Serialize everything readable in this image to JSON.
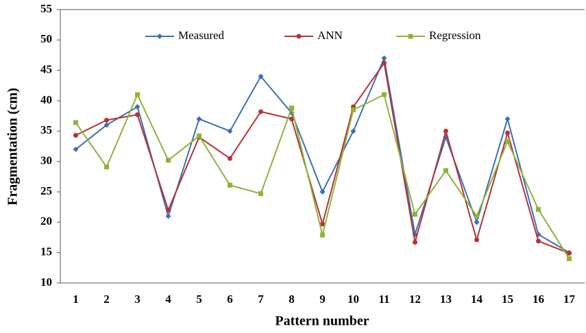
{
  "chart_data": {
    "type": "line",
    "x_label": "Pattern number",
    "y_label": "Fragmentation (cm)",
    "categories": [
      "1",
      "2",
      "3",
      "4",
      "5",
      "6",
      "7",
      "8",
      "9",
      "10",
      "11",
      "12",
      "13",
      "14",
      "15",
      "16",
      "17"
    ],
    "series": [
      {
        "name": "Measured",
        "color": "#3b6fb6",
        "marker": "diamond",
        "values": [
          32,
          36,
          39,
          21,
          37,
          35,
          44,
          38,
          25,
          35,
          47,
          18,
          34,
          20,
          37,
          18,
          15
        ]
      },
      {
        "name": "ANN",
        "color": "#b83232",
        "marker": "circle",
        "values": [
          34.3,
          36.8,
          37.7,
          22,
          34,
          30.5,
          38.2,
          37,
          19.7,
          39,
          46.2,
          16.7,
          35,
          17.1,
          34.7,
          16.9,
          14.9
        ]
      },
      {
        "name": "Regression",
        "color": "#8db33a",
        "marker": "square",
        "values": [
          36.4,
          29.1,
          41,
          30.2,
          34.2,
          26.1,
          24.7,
          38.8,
          17.9,
          38.5,
          41,
          21.3,
          28.5,
          21,
          33.3,
          22.1,
          14
        ]
      }
    ],
    "ylim": [
      10,
      55
    ],
    "yticks": [
      10,
      15,
      20,
      25,
      30,
      35,
      40,
      45,
      50,
      55
    ],
    "legend": "top"
  }
}
